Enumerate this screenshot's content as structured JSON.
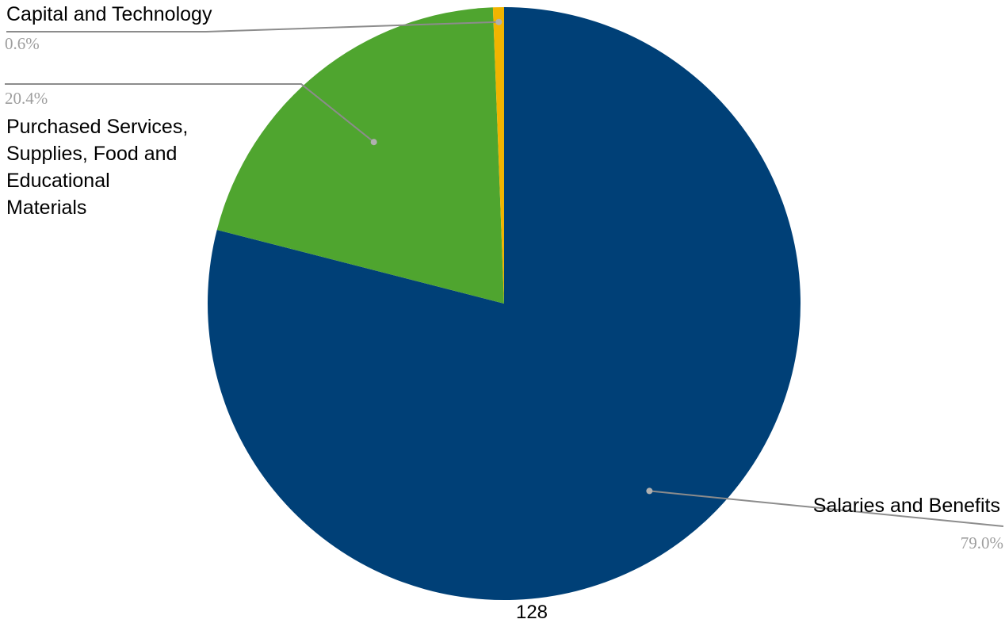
{
  "chart_data": {
    "type": "pie",
    "start_angle_deg": 0,
    "direction": "clockwise",
    "slices": [
      {
        "label": "Salaries and Benefits",
        "value": 79.0,
        "value_label": "79.0%",
        "color": "#004077"
      },
      {
        "label": "Purchased Services, Supplies, Food and Educational Materials",
        "label_lines": [
          "Purchased Services,",
          "Supplies, Food and",
          "Educational",
          "Materials"
        ],
        "value": 20.4,
        "value_label": "20.4%",
        "color": "#4fa52f"
      },
      {
        "label": "Capital and Technology",
        "value": 0.6,
        "value_label": "0.6%",
        "color": "#f1b400"
      }
    ]
  },
  "footer": {
    "page_number": "128"
  }
}
